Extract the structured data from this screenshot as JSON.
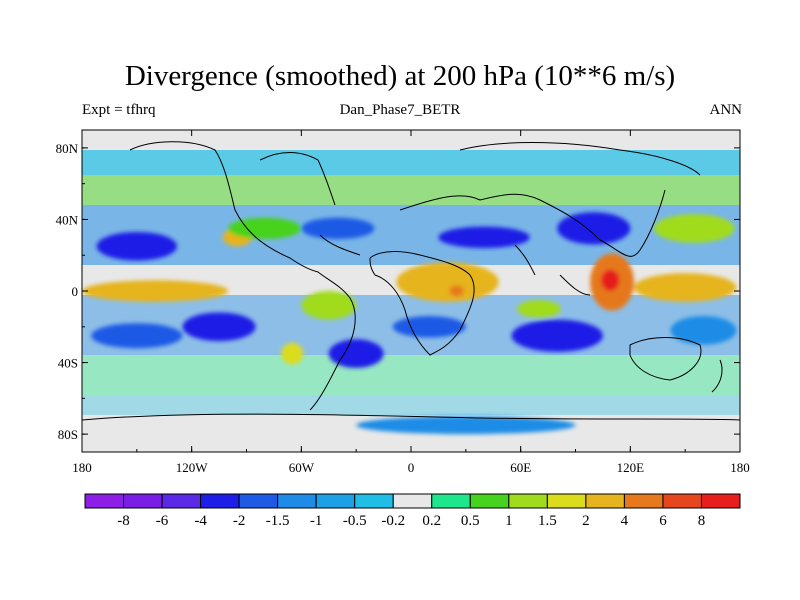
{
  "title": "Divergence (smoothed) at 200 hPa (10**6 m/s)",
  "left_string": "Expt = tfhrq",
  "center_string": "Dan_Phase7_BETR",
  "right_string": "ANN",
  "map": {
    "projection": "cylindrical-equidistant",
    "lon_range": [
      -180,
      180
    ],
    "lat_range": [
      -90,
      90
    ],
    "lon_ticks": [
      "180",
      "120W",
      "60W",
      "0",
      "60E",
      "120E",
      "180"
    ],
    "lat_ticks": [
      "80N",
      "40N",
      "0",
      "40S",
      "80S"
    ]
  },
  "colorbar": {
    "labels": [
      "-8",
      "-6",
      "-4",
      "-2",
      "-1.5",
      "-1",
      "-0.5",
      "-0.2",
      "0.2",
      "0.5",
      "1",
      "1.5",
      "2",
      "4",
      "6",
      "8"
    ],
    "colors": [
      "#8c1ee6",
      "#7a1ee6",
      "#5a2ae6",
      "#1e1ee6",
      "#1e5ae6",
      "#1e8ce6",
      "#1ea0e6",
      "#1ebee6",
      "#e8e8e8",
      "#1ee68c",
      "#46d21e",
      "#a0dc1e",
      "#dcdc1e",
      "#e6b41e",
      "#e6781e",
      "#e6461e",
      "#e61e1e"
    ]
  },
  "regions": [
    {
      "lon": -150,
      "lat": 25,
      "rx": 22,
      "ry": 8,
      "level": "-2"
    },
    {
      "lon": -140,
      "lat": 0,
      "rx": 40,
      "ry": 6,
      "level": "2"
    },
    {
      "lon": -150,
      "lat": -25,
      "rx": 25,
      "ry": 7,
      "level": "-1.5"
    },
    {
      "lon": -105,
      "lat": -20,
      "rx": 20,
      "ry": 8,
      "level": "-2"
    },
    {
      "lon": -95,
      "lat": 30,
      "rx": 8,
      "ry": 5,
      "level": "2"
    },
    {
      "lon": -80,
      "lat": 35,
      "rx": 20,
      "ry": 6,
      "level": "0.5"
    },
    {
      "lon": -40,
      "lat": 35,
      "rx": 20,
      "ry": 6,
      "level": "-1.5"
    },
    {
      "lon": -45,
      "lat": -8,
      "rx": 15,
      "ry": 8,
      "level": "1"
    },
    {
      "lon": -65,
      "lat": -35,
      "rx": 6,
      "ry": 6,
      "level": "1.5"
    },
    {
      "lon": -30,
      "lat": -35,
      "rx": 15,
      "ry": 8,
      "level": "-2"
    },
    {
      "lon": 20,
      "lat": 5,
      "rx": 28,
      "ry": 11,
      "level": "2"
    },
    {
      "lon": 25,
      "lat": 0,
      "rx": 4,
      "ry": 3,
      "level": "4"
    },
    {
      "lon": 10,
      "lat": -20,
      "rx": 20,
      "ry": 6,
      "level": "-1.5"
    },
    {
      "lon": 40,
      "lat": 30,
      "rx": 25,
      "ry": 6,
      "level": "-2"
    },
    {
      "lon": 70,
      "lat": -10,
      "rx": 12,
      "ry": 5,
      "level": "1"
    },
    {
      "lon": 80,
      "lat": -25,
      "rx": 25,
      "ry": 9,
      "level": "-2"
    },
    {
      "lon": 100,
      "lat": 35,
      "rx": 20,
      "ry": 9,
      "level": "-2"
    },
    {
      "lon": 110,
      "lat": 5,
      "rx": 12,
      "ry": 16,
      "level": "4"
    },
    {
      "lon": 109,
      "lat": 6,
      "rx": 5,
      "ry": 6,
      "level": "8"
    },
    {
      "lon": 150,
      "lat": 2,
      "rx": 28,
      "ry": 8,
      "level": "2"
    },
    {
      "lon": 155,
      "lat": 35,
      "rx": 22,
      "ry": 8,
      "level": "1"
    },
    {
      "lon": 160,
      "lat": -22,
      "rx": 18,
      "ry": 8,
      "level": "-1"
    },
    {
      "lon": 30,
      "lat": -75,
      "rx": 60,
      "ry": 5,
      "level": "-1"
    }
  ]
}
